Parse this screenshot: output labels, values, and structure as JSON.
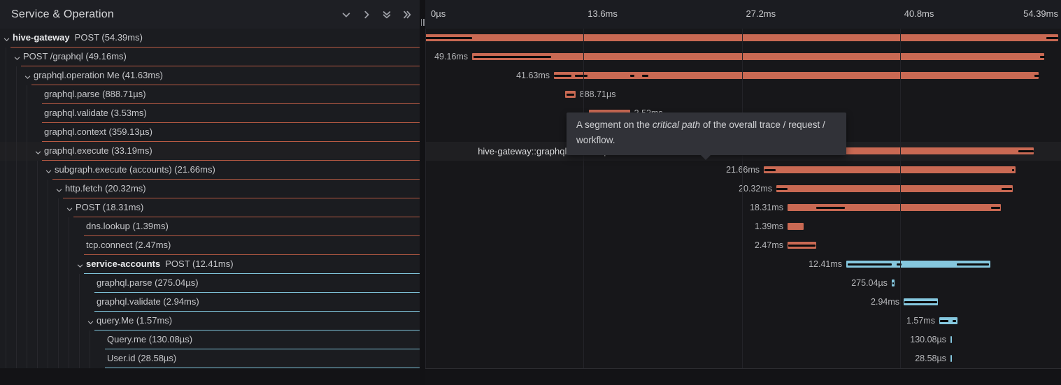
{
  "header": {
    "title": "Service & Operation",
    "icons": [
      "chevron-down-icon",
      "chevron-right-icon",
      "double-chevron-down-icon",
      "double-chevron-right-icon"
    ]
  },
  "timeline": {
    "total_ms": 54.39,
    "ticks": [
      {
        "label": "0µs",
        "pct": 0
      },
      {
        "label": "13.6ms",
        "pct": 25
      },
      {
        "label": "27.2ms",
        "pct": 50
      },
      {
        "label": "40.8ms",
        "pct": 75
      },
      {
        "label": "54.39ms",
        "pct": 100
      }
    ]
  },
  "tooltip": {
    "prefix": "A segment on the ",
    "emphasis": "critical path",
    "suffix": " of the overall trace / request / workflow."
  },
  "colors": {
    "span_red": "#c96953",
    "span_blue": "#85c7de",
    "row_border_red": "#b85a43",
    "row_border_blue": "#7fc3da",
    "critical_path": "#0a0a0b"
  },
  "rows": [
    {
      "service": "hive-gateway",
      "text": "POST (54.39ms)",
      "level": 0,
      "color": "red",
      "expandable": true,
      "start_ms": 0.0,
      "dur_ms": 54.39,
      "label": "",
      "label_side": "none",
      "critical": [
        [
          0.0,
          4.03
        ],
        [
          53.37,
          54.39
        ]
      ]
    },
    {
      "service": "",
      "text": "POST /graphql (49.16ms)",
      "level": 1,
      "color": "red",
      "expandable": true,
      "start_ms": 4.03,
      "dur_ms": 49.16,
      "label": "49.16ms",
      "label_side": "left",
      "critical": [
        [
          4.15,
          10.82
        ],
        [
          52.82,
          53.25
        ]
      ]
    },
    {
      "service": "",
      "text": "graphql.operation Me (41.63ms)",
      "level": 2,
      "color": "red",
      "expandable": true,
      "start_ms": 11.06,
      "dur_ms": 41.63,
      "label": "41.63ms",
      "label_side": "left",
      "critical": [
        [
          11.06,
          12.56
        ],
        [
          12.86,
          13.94
        ],
        [
          17.61,
          17.97
        ],
        [
          18.63,
          19.17
        ],
        [
          52.34,
          52.76
        ]
      ]
    },
    {
      "service": "",
      "text": "graphql.parse (888.71µs)",
      "level": 3,
      "color": "red",
      "expandable": false,
      "start_ms": 12.02,
      "dur_ms": 0.889,
      "label": "888.71µs",
      "label_side": "right",
      "critical": [
        [
          12.14,
          12.78
        ]
      ]
    },
    {
      "service": "",
      "text": "graphql.validate (3.53ms)",
      "level": 3,
      "color": "red",
      "expandable": false,
      "start_ms": 14.06,
      "dur_ms": 3.53,
      "label": "3.53ms",
      "label_side": "right",
      "critical": []
    },
    {
      "service": "",
      "text": "graphql.context (359.13µs)",
      "level": 3,
      "color": "red",
      "expandable": false,
      "start_ms": 17.59,
      "dur_ms": 0.359,
      "label": "359.13µs",
      "label_side": "right",
      "critical": []
    },
    {
      "service": "",
      "text": "graphql.execute (33.19ms)",
      "level": 3,
      "color": "red",
      "expandable": true,
      "highlighted": true,
      "start_ms": 19.11,
      "dur_ms": 33.19,
      "label": "hive-gateway::graphql.execute | 33.19ms",
      "label_side": "left",
      "label_strong": true,
      "critical": [
        [
          19.11,
          29.03
        ],
        [
          50.96,
          52.28
        ]
      ]
    },
    {
      "service": "",
      "text": "subgraph.execute (accounts) (21.66ms)",
      "level": 4,
      "color": "red",
      "expandable": true,
      "start_ms": 29.09,
      "dur_ms": 21.66,
      "label": "21.66ms",
      "label_side": "left",
      "critical": [
        [
          29.15,
          30.11
        ],
        [
          50.42,
          50.62
        ]
      ]
    },
    {
      "service": "",
      "text": "http.fetch (20.32ms)",
      "level": 5,
      "color": "red",
      "expandable": true,
      "start_ms": 30.17,
      "dur_ms": 20.32,
      "label": "20.32ms",
      "label_side": "left",
      "critical": [
        [
          30.17,
          31.13
        ],
        [
          49.52,
          50.42
        ]
      ]
    },
    {
      "service": "",
      "text": "POST (18.31ms)",
      "level": 6,
      "color": "red",
      "expandable": true,
      "start_ms": 31.13,
      "dur_ms": 18.31,
      "label": "18.31ms",
      "label_side": "left",
      "critical": [
        [
          33.59,
          36.06
        ],
        [
          48.62,
          49.4
        ]
      ]
    },
    {
      "service": "",
      "text": "dns.lookup (1.39ms)",
      "level": 7,
      "color": "red",
      "expandable": false,
      "start_ms": 31.13,
      "dur_ms": 1.39,
      "label": "1.39ms",
      "label_side": "left",
      "critical": []
    },
    {
      "service": "",
      "text": "tcp.connect (2.47ms)",
      "level": 7,
      "color": "red",
      "expandable": false,
      "start_ms": 31.13,
      "dur_ms": 2.47,
      "label": "2.47ms",
      "label_side": "left",
      "critical": [
        [
          31.19,
          33.53
        ]
      ]
    },
    {
      "service": "service-accounts",
      "text": "POST (12.41ms)",
      "level": 7,
      "color": "blue",
      "expandable": true,
      "start_ms": 36.18,
      "dur_ms": 12.41,
      "label": "12.41ms",
      "label_side": "left",
      "critical": [
        [
          36.3,
          40.08
        ],
        [
          40.5,
          40.93
        ],
        [
          45.67,
          48.44
        ]
      ]
    },
    {
      "service": "",
      "text": "graphql.parse (275.04µs)",
      "level": 8,
      "color": "blue",
      "expandable": false,
      "start_ms": 40.08,
      "dur_ms": 0.275,
      "label": "275.04µs",
      "label_side": "left",
      "critical": [
        [
          40.12,
          40.24
        ]
      ]
    },
    {
      "service": "",
      "text": "graphql.validate (2.94ms)",
      "level": 8,
      "color": "blue",
      "expandable": false,
      "start_ms": 41.11,
      "dur_ms": 2.94,
      "label": "2.94ms",
      "label_side": "left",
      "critical": [
        [
          41.17,
          44.0
        ]
      ]
    },
    {
      "service": "",
      "text": "query.Me (1.57ms)",
      "level": 8,
      "color": "blue",
      "expandable": true,
      "start_ms": 44.17,
      "dur_ms": 1.57,
      "label": "1.57ms",
      "label_side": "left",
      "critical": [
        [
          44.23,
          44.95
        ],
        [
          45.31,
          45.61
        ]
      ]
    },
    {
      "service": "",
      "text": "Query.me (130.08µs)",
      "level": 9,
      "color": "blue",
      "expandable": false,
      "start_ms": 45.13,
      "dur_ms": 0.13,
      "label": "130.08µs",
      "label_side": "left",
      "critical": []
    },
    {
      "service": "",
      "text": "User.id (28.58µs)",
      "level": 9,
      "color": "blue",
      "expandable": false,
      "start_ms": 45.13,
      "dur_ms": 0.029,
      "label": "28.58µs",
      "label_side": "left",
      "critical": []
    }
  ]
}
